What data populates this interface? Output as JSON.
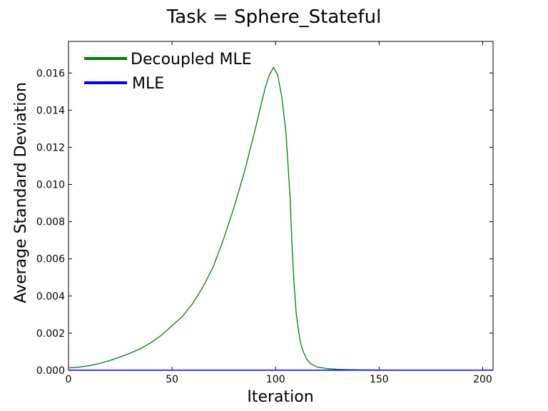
{
  "chart_data": {
    "type": "line",
    "title": "Task = Sphere_Stateful",
    "xlabel": "Iteration",
    "ylabel": "Average Standard Deviation",
    "xlim": [
      0,
      205
    ],
    "ylim": [
      0,
      0.0177
    ],
    "xticks": [
      0,
      50,
      100,
      150,
      200
    ],
    "xtick_labels": [
      "0",
      "50",
      "100",
      "150",
      "200"
    ],
    "yticks": [
      0.0,
      0.002,
      0.004,
      0.006,
      0.008,
      0.01,
      0.012,
      0.014,
      0.016
    ],
    "ytick_labels": [
      "0.000",
      "0.002",
      "0.004",
      "0.006",
      "0.008",
      "0.010",
      "0.012",
      "0.014",
      "0.016"
    ],
    "grid": false,
    "legend_position": "top-left",
    "series": [
      {
        "name": "Decoupled MLE",
        "color": "#008000",
        "x": [
          0,
          5,
          10,
          15,
          20,
          25,
          30,
          35,
          40,
          45,
          50,
          55,
          60,
          65,
          70,
          75,
          80,
          85,
          90,
          93,
          95,
          97,
          99,
          101,
          103,
          105,
          107,
          108,
          109,
          110,
          111,
          112,
          113,
          115,
          117,
          120,
          125,
          130,
          140,
          150,
          170,
          200,
          205
        ],
        "y": [
          0.00013,
          0.00017,
          0.00025,
          0.00037,
          0.00053,
          0.00072,
          0.00093,
          0.00118,
          0.0015,
          0.0019,
          0.0024,
          0.0029,
          0.0036,
          0.0045,
          0.0056,
          0.0071,
          0.0088,
          0.0107,
          0.0129,
          0.0143,
          0.0152,
          0.0159,
          0.0163,
          0.0159,
          0.0147,
          0.0128,
          0.0093,
          0.0065,
          0.0045,
          0.003,
          0.0022,
          0.0015,
          0.0011,
          0.0006,
          0.00035,
          0.00018,
          9e-05,
          5e-05,
          3e-05,
          2e-05,
          1e-05,
          5e-06,
          5e-06
        ]
      },
      {
        "name": "MLE",
        "color": "#0000ff",
        "x": [
          0,
          205
        ],
        "y": [
          1e-05,
          1e-05
        ]
      }
    ]
  }
}
